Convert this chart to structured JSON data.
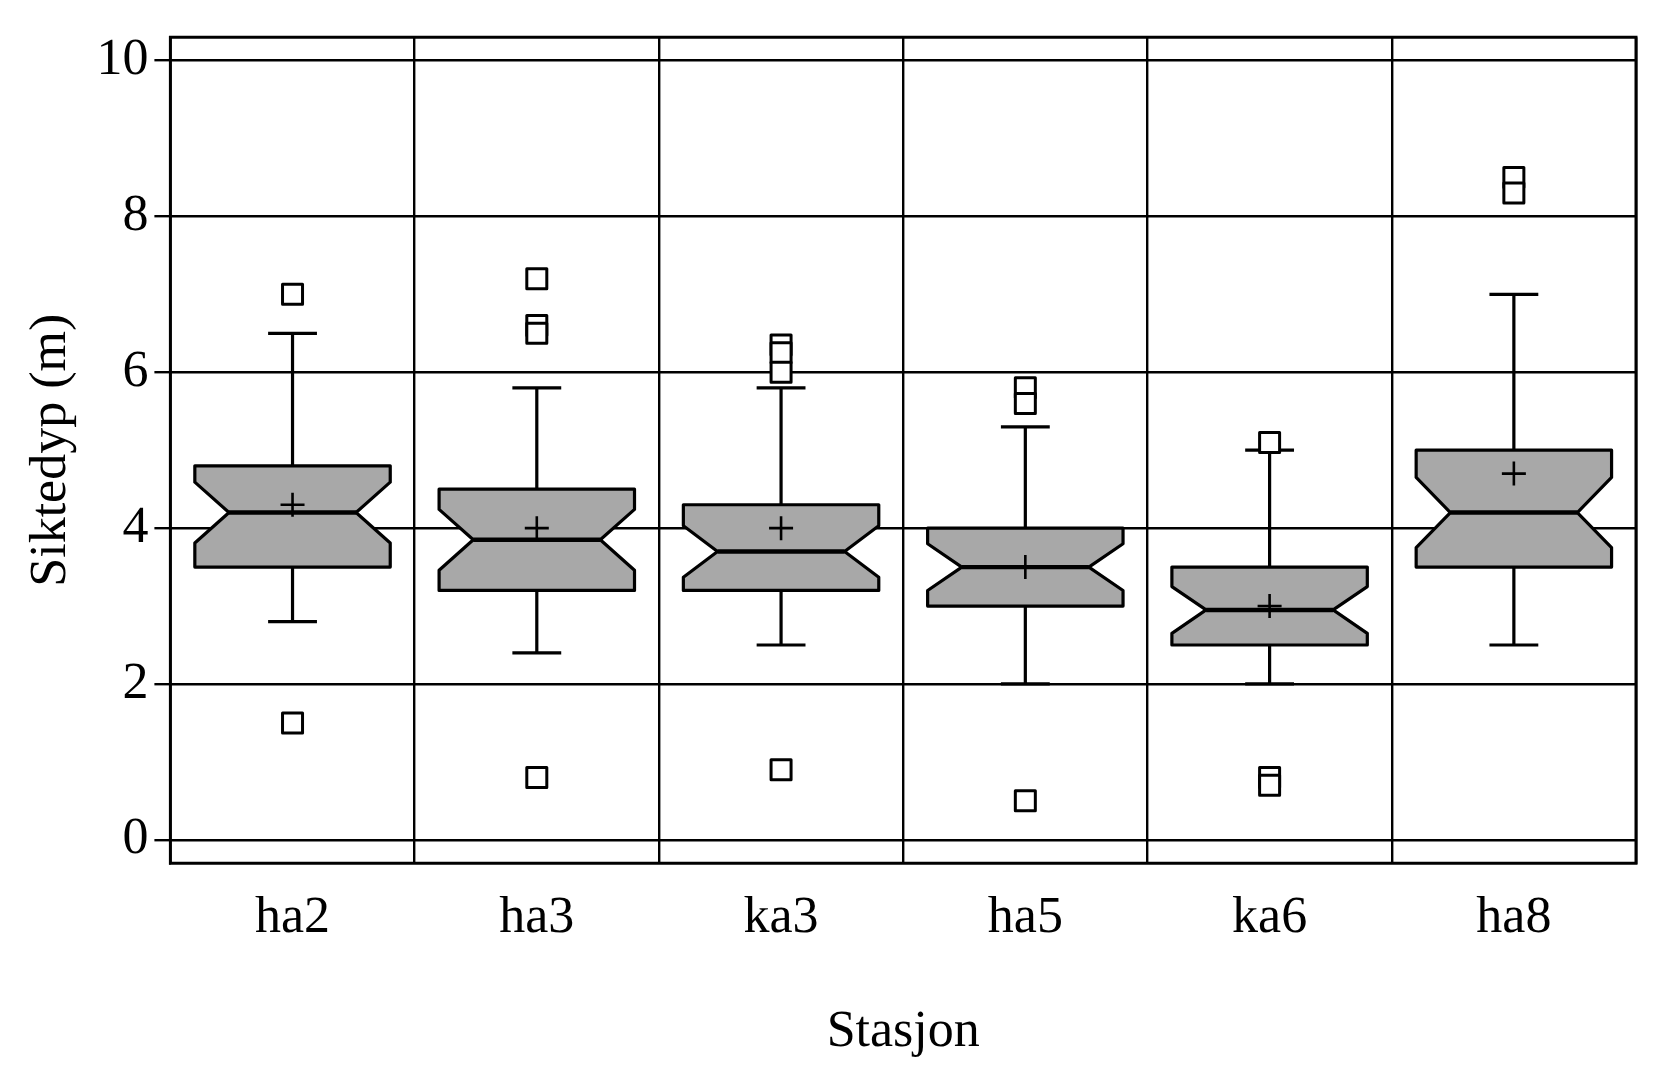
{
  "chart_data": {
    "type": "box",
    "xlabel": "Stasjon",
    "ylabel": "Siktedyp (m)",
    "categories": [
      "ha2",
      "ha3",
      "ka3",
      "ha5",
      "ka6",
      "ha8"
    ],
    "boxes": [
      {
        "low": 2.8,
        "q1": 3.5,
        "median": 4.2,
        "q3": 4.8,
        "high": 6.5,
        "mean": 4.3,
        "outliers": [
          7.0,
          1.5
        ]
      },
      {
        "low": 2.4,
        "q1": 3.2,
        "median": 3.85,
        "q3": 4.5,
        "high": 5.8,
        "mean": 4.0,
        "outliers": [
          7.2,
          6.6,
          6.5,
          0.8
        ]
      },
      {
        "low": 2.5,
        "q1": 3.2,
        "median": 3.7,
        "q3": 4.3,
        "high": 5.8,
        "mean": 4.0,
        "outliers": [
          6.35,
          6.25,
          6.0,
          0.9
        ]
      },
      {
        "low": 2.0,
        "q1": 3.0,
        "median": 3.5,
        "q3": 4.0,
        "high": 5.3,
        "mean": 3.5,
        "outliers": [
          5.8,
          5.6,
          0.5
        ]
      },
      {
        "low": 2.0,
        "q1": 2.5,
        "median": 2.95,
        "q3": 3.5,
        "high": 5.0,
        "mean": 3.0,
        "outliers": [
          5.1,
          0.8,
          0.7
        ]
      },
      {
        "low": 2.5,
        "q1": 3.5,
        "median": 4.2,
        "q3": 5.0,
        "high": 7.0,
        "mean": 4.7,
        "outliers": [
          8.5,
          8.3
        ]
      }
    ],
    "color": "#a8a8a8",
    "ylim": [
      -0.3,
      10.3
    ],
    "yticks": [
      0,
      2,
      4,
      6,
      8,
      10
    ],
    "grid": true,
    "marker": "square"
  }
}
